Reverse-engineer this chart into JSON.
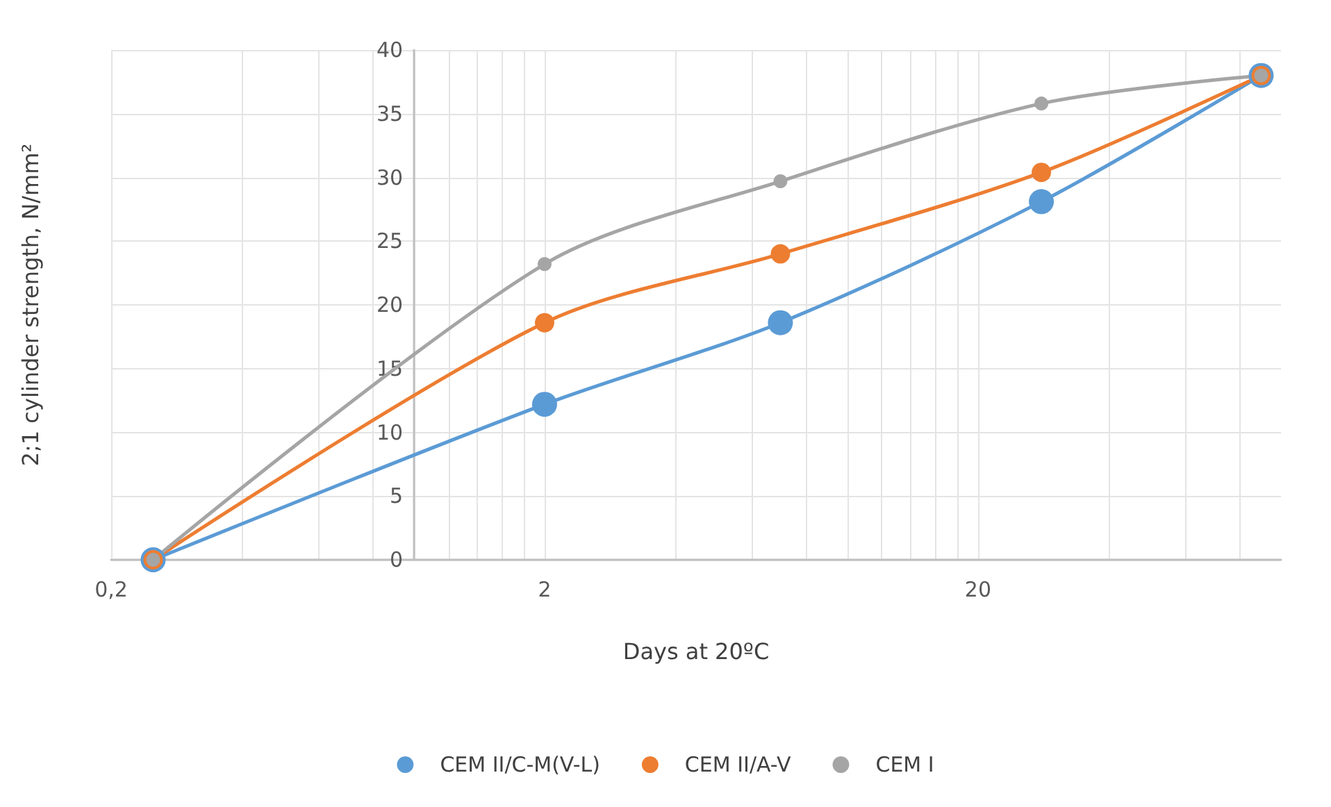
{
  "chart_data": {
    "type": "line",
    "xlabel": "Days at 20ºC",
    "ylabel": "2;1 cylinder strength, N/mm²",
    "log": "x",
    "x": [
      0.25,
      2,
      7,
      28,
      90
    ],
    "series": [
      {
        "name": "CEM II/C-M(V-L)",
        "color": "#5b9bd5",
        "values": [
          0,
          12.2,
          18.6,
          28.1,
          38
        ]
      },
      {
        "name": "CEM II/A-V",
        "color": "#ed7d31",
        "values": [
          0,
          18.6,
          24,
          30.4,
          38
        ]
      },
      {
        "name": "CEM I",
        "color": "#a5a5a5",
        "values": [
          0,
          23.2,
          29.7,
          35.8,
          38
        ]
      }
    ],
    "xlim": [
      0.2,
      100
    ],
    "xticks": [
      {
        "value": 0.2,
        "label": "0,2"
      },
      {
        "value": 0.4,
        "label": null
      },
      {
        "value": 0.6,
        "label": null
      },
      {
        "value": 0.8,
        "label": null
      },
      {
        "value": 1,
        "label": null
      },
      {
        "value": 1.2,
        "label": null
      },
      {
        "value": 1.4,
        "label": null
      },
      {
        "value": 1.6,
        "label": null
      },
      {
        "value": 1.8,
        "label": null
      },
      2,
      {
        "value": 4,
        "label": null
      },
      {
        "value": 6,
        "label": null
      },
      {
        "value": 8,
        "label": null
      },
      {
        "value": 10,
        "label": null
      },
      {
        "value": 12,
        "label": null
      },
      {
        "value": 14,
        "label": null
      },
      {
        "value": 16,
        "label": null
      },
      {
        "value": 18,
        "label": null
      },
      20,
      {
        "value": 40,
        "label": null
      },
      {
        "value": 60,
        "label": null
      },
      {
        "value": 80,
        "label": null
      }
    ],
    "ylim": [
      0,
      40
    ],
    "yticks": [
      0,
      5,
      10,
      15,
      20,
      25,
      30,
      35,
      40
    ],
    "grid": true,
    "legend": "bottom",
    "marker": "circle",
    "line_style": "solid"
  }
}
